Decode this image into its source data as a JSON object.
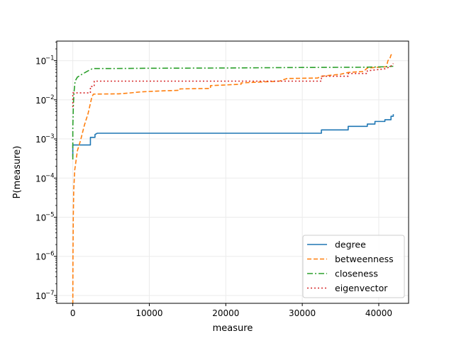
{
  "chart_data": {
    "type": "line",
    "title": "",
    "xlabel": "measure",
    "ylabel": "P(measure)",
    "xlim": [
      -2100,
      43900
    ],
    "ylim_log10": [
      -7.2,
      -0.5
    ],
    "yscale": "log",
    "grid": true,
    "legend_position": "lower-right",
    "x_ticks": [
      {
        "value": 0,
        "label": "0"
      },
      {
        "value": 10000,
        "label": "10000"
      },
      {
        "value": 20000,
        "label": "20000"
      },
      {
        "value": 30000,
        "label": "30000"
      },
      {
        "value": 40000,
        "label": "40000"
      }
    ],
    "y_ticks": [
      {
        "exp": -7,
        "base": "10",
        "sup": "−7"
      },
      {
        "exp": -6,
        "base": "10",
        "sup": "−6"
      },
      {
        "exp": -5,
        "base": "10",
        "sup": "−5"
      },
      {
        "exp": -4,
        "base": "10",
        "sup": "−4"
      },
      {
        "exp": -3,
        "base": "10",
        "sup": "−3"
      },
      {
        "exp": -2,
        "base": "10",
        "sup": "−2"
      },
      {
        "exp": -1,
        "base": "10",
        "sup": "−1"
      }
    ],
    "series": [
      {
        "name": "degree",
        "color": "#1f77b4",
        "dash": "",
        "points": [
          [
            0,
            0.00035
          ],
          [
            0,
            0.0007
          ],
          [
            2300,
            0.0007
          ],
          [
            2300,
            0.0011
          ],
          [
            2900,
            0.0011
          ],
          [
            2900,
            0.0013
          ],
          [
            3200,
            0.0014
          ],
          [
            32500,
            0.0014
          ],
          [
            32500,
            0.0017
          ],
          [
            36000,
            0.0017
          ],
          [
            36000,
            0.0021
          ],
          [
            38500,
            0.0021
          ],
          [
            38500,
            0.0024
          ],
          [
            39500,
            0.0024
          ],
          [
            39500,
            0.0028
          ],
          [
            40800,
            0.0028
          ],
          [
            40800,
            0.0031
          ],
          [
            41600,
            0.0031
          ],
          [
            41600,
            0.0038
          ],
          [
            41900,
            0.0038
          ],
          [
            41900,
            0.0043
          ]
        ]
      },
      {
        "name": "betweenness",
        "color": "#ff7f0e",
        "dash": "6,3",
        "points": [
          [
            0,
            6e-08
          ],
          [
            20,
            1e-06
          ],
          [
            60,
            1e-05
          ],
          [
            120,
            5e-05
          ],
          [
            250,
            0.00016
          ],
          [
            600,
            0.0005
          ],
          [
            1000,
            0.0009
          ],
          [
            1500,
            0.0022
          ],
          [
            2000,
            0.0045
          ],
          [
            2500,
            0.012
          ],
          [
            2700,
            0.014
          ],
          [
            6000,
            0.0142
          ],
          [
            7500,
            0.015
          ],
          [
            9000,
            0.016
          ],
          [
            12000,
            0.017
          ],
          [
            14000,
            0.0175
          ],
          [
            14000,
            0.019
          ],
          [
            18000,
            0.0195
          ],
          [
            18000,
            0.023
          ],
          [
            22000,
            0.025
          ],
          [
            22000,
            0.027
          ],
          [
            27000,
            0.03
          ],
          [
            28000,
            0.035
          ],
          [
            32000,
            0.036
          ],
          [
            32500,
            0.04
          ],
          [
            35000,
            0.045
          ],
          [
            36000,
            0.05
          ],
          [
            38000,
            0.053
          ],
          [
            38500,
            0.065
          ],
          [
            41000,
            0.07
          ],
          [
            41200,
            0.1
          ],
          [
            41500,
            0.12
          ],
          [
            41600,
            0.14
          ],
          [
            41900,
            0.15
          ]
        ]
      },
      {
        "name": "closeness",
        "color": "#2ca02c",
        "dash": "8,3,2,3",
        "points": [
          [
            0,
            0.0003
          ],
          [
            0,
            0.002
          ],
          [
            80,
            0.008
          ],
          [
            150,
            0.015
          ],
          [
            300,
            0.03
          ],
          [
            600,
            0.038
          ],
          [
            1200,
            0.045
          ],
          [
            2000,
            0.055
          ],
          [
            2600,
            0.063
          ],
          [
            5000,
            0.063
          ],
          [
            10000,
            0.064
          ],
          [
            20000,
            0.065
          ],
          [
            30000,
            0.067
          ],
          [
            38000,
            0.068
          ],
          [
            41000,
            0.07
          ],
          [
            41900,
            0.072
          ]
        ]
      },
      {
        "name": "eigenvector",
        "color": "#d62728",
        "dash": "2,3",
        "points": [
          [
            0,
            0.0065
          ],
          [
            0,
            0.015
          ],
          [
            2300,
            0.015
          ],
          [
            2300,
            0.022
          ],
          [
            2800,
            0.022
          ],
          [
            2800,
            0.03
          ],
          [
            32500,
            0.03
          ],
          [
            32500,
            0.04
          ],
          [
            36000,
            0.04
          ],
          [
            36000,
            0.047
          ],
          [
            38500,
            0.047
          ],
          [
            38500,
            0.055
          ],
          [
            40800,
            0.062
          ],
          [
            41500,
            0.07
          ],
          [
            41900,
            0.085
          ]
        ]
      }
    ]
  }
}
